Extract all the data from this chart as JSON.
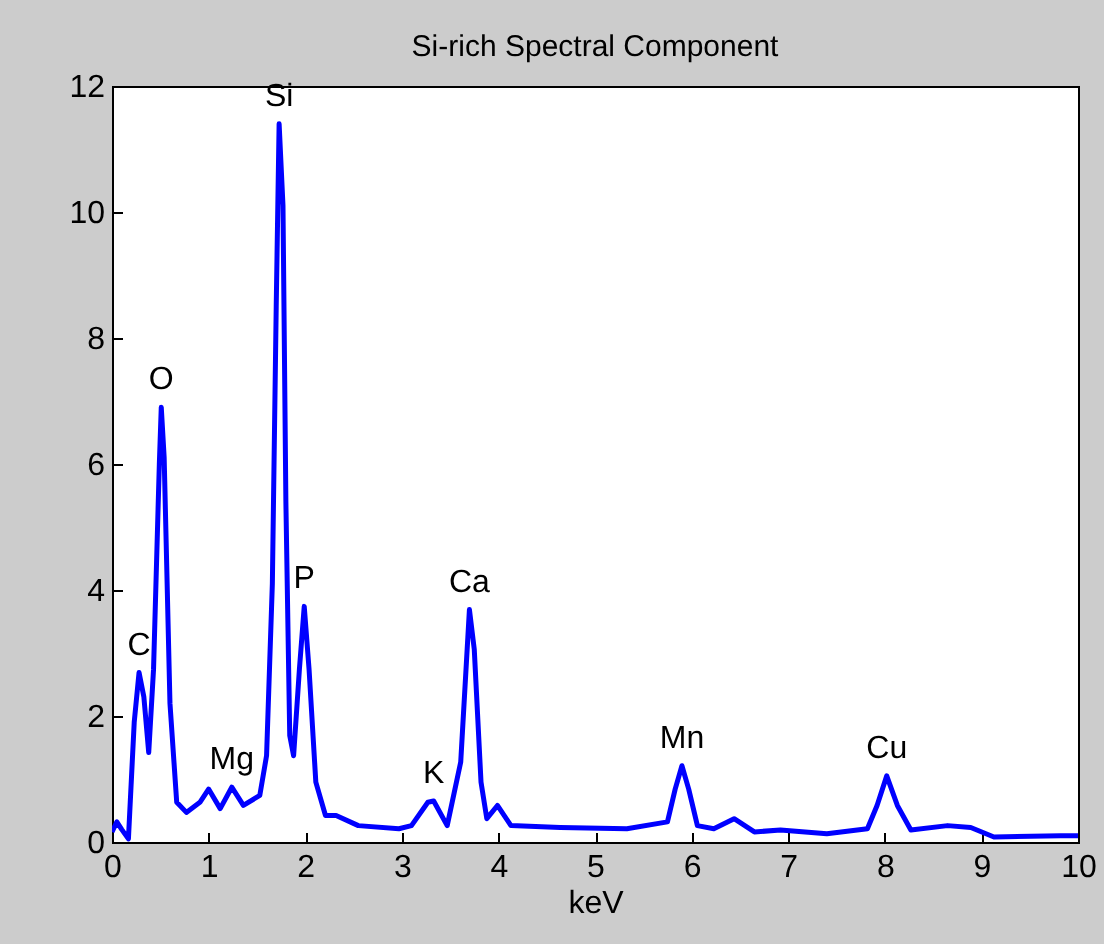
{
  "chart_data": {
    "type": "line",
    "title": "Si-rich Spectral Component",
    "xlabel": "keV",
    "x": [
      0,
      0.05,
      0.1,
      0.17,
      0.23,
      0.28,
      0.33,
      0.38,
      0.43,
      0.49,
      0.51,
      0.54,
      0.6,
      0.67,
      0.77,
      0.91,
      1.0,
      1.12,
      1.24,
      1.36,
      1.53,
      1.6,
      1.66,
      1.7,
      1.73,
      1.77,
      1.8,
      1.84,
      1.88,
      1.94,
      1.99,
      2.04,
      2.11,
      2.21,
      2.32,
      2.55,
      2.97,
      3.1,
      3.27,
      3.33,
      3.47,
      3.61,
      3.7,
      3.75,
      3.82,
      3.88,
      3.99,
      4.13,
      4.64,
      5.33,
      5.75,
      5.83,
      5.9,
      5.97,
      6.06,
      6.23,
      6.44,
      6.65,
      6.92,
      7.4,
      7.82,
      7.92,
      8.02,
      8.13,
      8.27,
      8.65,
      8.89,
      9.13,
      9.82,
      10
    ],
    "series": [
      {
        "color": "#0000ff",
        "values": [
          0.16,
          0.32,
          0.2,
          0.05,
          1.9,
          2.69,
          2.3,
          1.42,
          2.74,
          6.0,
          6.9,
          6.1,
          2.2,
          0.63,
          0.47,
          0.63,
          0.84,
          0.53,
          0.87,
          0.58,
          0.74,
          1.37,
          4.1,
          8.5,
          11.4,
          10.1,
          5.4,
          1.69,
          1.37,
          2.74,
          3.74,
          2.74,
          0.95,
          0.42,
          0.42,
          0.26,
          0.21,
          0.26,
          0.63,
          0.65,
          0.26,
          1.27,
          3.69,
          3.06,
          0.95,
          0.37,
          0.58,
          0.26,
          0.23,
          0.21,
          0.32,
          0.84,
          1.21,
          0.84,
          0.26,
          0.21,
          0.37,
          0.16,
          0.19,
          0.13,
          0.21,
          0.58,
          1.05,
          0.58,
          0.19,
          0.26,
          0.23,
          0.08,
          0.1,
          0.1
        ]
      }
    ],
    "xlim": [
      0,
      10
    ],
    "xticks": [
      0,
      1,
      2,
      3,
      4,
      5,
      6,
      7,
      8,
      9,
      10
    ],
    "ylim": [
      0,
      12
    ],
    "yticks": [
      0,
      2,
      4,
      6,
      8,
      10,
      12
    ],
    "grid": false,
    "marker": "none",
    "line_style": "solid",
    "annotations": [
      {
        "text": "C",
        "x": 0.28,
        "y": 2.69
      },
      {
        "text": "O",
        "x": 0.51,
        "y": 6.9
      },
      {
        "text": "Mg",
        "x": 1.24,
        "y": 0.87
      },
      {
        "text": "Si",
        "x": 1.73,
        "y": 11.4
      },
      {
        "text": "P",
        "x": 1.99,
        "y": 3.74
      },
      {
        "text": "K",
        "x": 3.33,
        "y": 0.65
      },
      {
        "text": "Ca",
        "x": 3.7,
        "y": 3.69
      },
      {
        "text": "Mn",
        "x": 5.9,
        "y": 1.21
      },
      {
        "text": "Cu",
        "x": 8.02,
        "y": 1.05
      }
    ]
  }
}
